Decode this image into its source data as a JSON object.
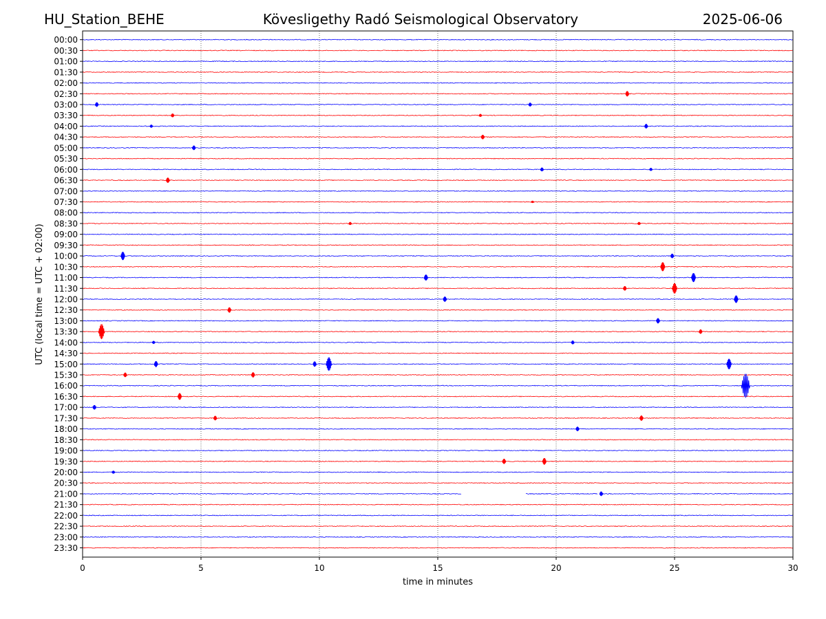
{
  "header": {
    "station": "HU_Station_BEHE",
    "observatory": "Kövesligethy Radó Seismological Observatory",
    "date": "2025-06-06"
  },
  "chart_data": {
    "type": "line",
    "title": "Kövesligethy Radó Seismological Observatory",
    "xlabel": "time in minutes",
    "ylabel": "UTC (local time = UTC + 02:00)",
    "xlim": [
      0,
      30
    ],
    "xticks": [
      "0",
      "5",
      "10",
      "15",
      "20",
      "25",
      "30"
    ],
    "rows": [
      "00:00",
      "00:30",
      "01:00",
      "01:30",
      "02:00",
      "02:30",
      "03:00",
      "03:30",
      "04:00",
      "04:30",
      "05:00",
      "05:30",
      "06:00",
      "06:30",
      "07:00",
      "07:30",
      "08:00",
      "08:30",
      "09:00",
      "09:30",
      "10:00",
      "10:30",
      "11:00",
      "11:30",
      "12:00",
      "12:30",
      "13:00",
      "13:30",
      "14:00",
      "14:30",
      "15:00",
      "15:30",
      "16:00",
      "16:30",
      "17:00",
      "17:30",
      "18:00",
      "18:30",
      "19:00",
      "19:30",
      "20:00",
      "20:30",
      "21:00",
      "21:30",
      "22:00",
      "22:30",
      "23:00",
      "23:30"
    ],
    "colors": [
      "#0000ff",
      "#ff0000"
    ],
    "grid_x": true,
    "events": [
      {
        "row": "02:30",
        "t": 23.0,
        "amp": 0.35
      },
      {
        "row": "03:00",
        "t": 0.6,
        "amp": 0.3
      },
      {
        "row": "03:00",
        "t": 18.9,
        "amp": 0.25
      },
      {
        "row": "03:30",
        "t": 3.8,
        "amp": 0.25
      },
      {
        "row": "03:30",
        "t": 16.8,
        "amp": 0.2
      },
      {
        "row": "04:00",
        "t": 2.9,
        "amp": 0.2
      },
      {
        "row": "04:00",
        "t": 23.8,
        "amp": 0.3
      },
      {
        "row": "04:30",
        "t": 16.9,
        "amp": 0.3
      },
      {
        "row": "05:00",
        "t": 4.7,
        "amp": 0.3
      },
      {
        "row": "06:00",
        "t": 19.4,
        "amp": 0.25
      },
      {
        "row": "06:00",
        "t": 24.0,
        "amp": 0.2
      },
      {
        "row": "06:30",
        "t": 3.6,
        "amp": 0.35
      },
      {
        "row": "07:30",
        "t": 19.0,
        "amp": 0.15
      },
      {
        "row": "08:30",
        "t": 11.3,
        "amp": 0.2
      },
      {
        "row": "08:30",
        "t": 23.5,
        "amp": 0.2
      },
      {
        "row": "10:00",
        "t": 1.7,
        "amp": 0.55
      },
      {
        "row": "10:00",
        "t": 24.9,
        "amp": 0.3
      },
      {
        "row": "10:30",
        "t": 24.5,
        "amp": 0.6
      },
      {
        "row": "11:00",
        "t": 14.5,
        "amp": 0.4
      },
      {
        "row": "11:00",
        "t": 25.8,
        "amp": 0.6
      },
      {
        "row": "11:30",
        "t": 22.9,
        "amp": 0.3
      },
      {
        "row": "11:30",
        "t": 25.0,
        "amp": 0.7
      },
      {
        "row": "12:00",
        "t": 15.3,
        "amp": 0.35
      },
      {
        "row": "12:00",
        "t": 27.6,
        "amp": 0.5
      },
      {
        "row": "12:30",
        "t": 6.2,
        "amp": 0.35
      },
      {
        "row": "13:00",
        "t": 24.3,
        "amp": 0.35
      },
      {
        "row": "13:30",
        "t": 0.8,
        "amp": 1.0
      },
      {
        "row": "13:30",
        "t": 26.1,
        "amp": 0.3
      },
      {
        "row": "14:00",
        "t": 3.0,
        "amp": 0.2
      },
      {
        "row": "14:00",
        "t": 20.7,
        "amp": 0.25
      },
      {
        "row": "15:00",
        "t": 3.1,
        "amp": 0.4
      },
      {
        "row": "15:00",
        "t": 9.8,
        "amp": 0.35
      },
      {
        "row": "15:00",
        "t": 10.4,
        "amp": 0.9
      },
      {
        "row": "15:00",
        "t": 27.3,
        "amp": 0.7
      },
      {
        "row": "15:30",
        "t": 1.8,
        "amp": 0.3
      },
      {
        "row": "15:30",
        "t": 7.2,
        "amp": 0.35
      },
      {
        "row": "16:00",
        "t": 28.0,
        "amp": 1.6
      },
      {
        "row": "16:30",
        "t": 4.1,
        "amp": 0.45
      },
      {
        "row": "17:00",
        "t": 0.5,
        "amp": 0.3
      },
      {
        "row": "17:30",
        "t": 5.6,
        "amp": 0.3
      },
      {
        "row": "17:30",
        "t": 23.6,
        "amp": 0.35
      },
      {
        "row": "18:00",
        "t": 20.9,
        "amp": 0.3
      },
      {
        "row": "19:30",
        "t": 17.8,
        "amp": 0.35
      },
      {
        "row": "19:30",
        "t": 19.5,
        "amp": 0.45
      },
      {
        "row": "20:00",
        "t": 1.3,
        "amp": 0.2
      },
      {
        "row": "21:00",
        "t": 21.9,
        "amp": 0.3
      }
    ],
    "gaps": [
      {
        "row": "21:00",
        "from": 16.0,
        "to": 18.7
      },
      {
        "row": "21:00",
        "from": 21.75,
        "to": 21.85
      }
    ]
  }
}
